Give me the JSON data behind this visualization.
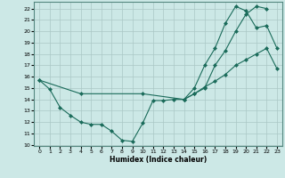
{
  "xlabel": "Humidex (Indice chaleur)",
  "bg_color": "#cce8e6",
  "grid_color": "#aac8c6",
  "line_color": "#1a6b5a",
  "xlim": [
    -0.5,
    23.5
  ],
  "ylim": [
    9.9,
    22.6
  ],
  "yticks": [
    10,
    11,
    12,
    13,
    14,
    15,
    16,
    17,
    18,
    19,
    20,
    21,
    22
  ],
  "xticks": [
    0,
    1,
    2,
    3,
    4,
    5,
    6,
    7,
    8,
    9,
    10,
    11,
    12,
    13,
    14,
    15,
    16,
    17,
    18,
    19,
    20,
    21,
    22,
    23
  ],
  "line1": {
    "x": [
      0,
      1,
      2,
      3,
      4,
      5,
      6,
      7,
      8,
      9,
      10,
      11,
      12,
      13,
      14,
      15,
      16,
      17,
      18,
      19,
      20,
      21,
      22
    ],
    "y": [
      15.7,
      14.9,
      13.3,
      12.6,
      12.0,
      11.8,
      11.8,
      11.2,
      10.4,
      10.3,
      11.9,
      13.9,
      13.9,
      14.0,
      14.0,
      14.5,
      15.0,
      17.0,
      18.3,
      20.0,
      21.5,
      22.2,
      22.0
    ]
  },
  "line2": {
    "x": [
      0,
      4,
      10,
      14,
      15,
      16,
      17,
      18,
      19,
      20,
      21,
      22,
      23
    ],
    "y": [
      15.7,
      14.5,
      14.5,
      14.0,
      15.0,
      17.0,
      18.5,
      20.7,
      22.2,
      21.8,
      20.3,
      20.5,
      18.5
    ]
  },
  "line3": {
    "x": [
      14,
      15,
      16,
      17,
      18,
      19,
      20,
      21,
      22,
      23
    ],
    "y": [
      14.0,
      14.5,
      15.1,
      15.6,
      16.2,
      17.0,
      17.5,
      18.0,
      18.5,
      16.7
    ]
  }
}
